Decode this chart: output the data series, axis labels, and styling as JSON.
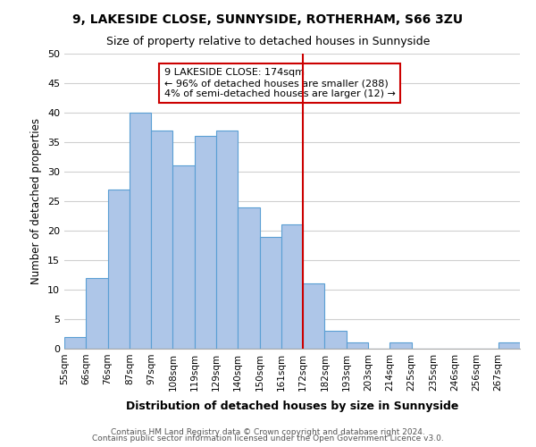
{
  "title": "9, LAKESIDE CLOSE, SUNNYSIDE, ROTHERHAM, S66 3ZU",
  "subtitle": "Size of property relative to detached houses in Sunnyside",
  "xlabel": "Distribution of detached houses by size in Sunnyside",
  "ylabel": "Number of detached properties",
  "bin_labels": [
    "55sqm",
    "66sqm",
    "76sqm",
    "87sqm",
    "97sqm",
    "108sqm",
    "119sqm",
    "129sqm",
    "140sqm",
    "150sqm",
    "161sqm",
    "172sqm",
    "182sqm",
    "193sqm",
    "203sqm",
    "214sqm",
    "225sqm",
    "235sqm",
    "246sqm",
    "256sqm",
    "267sqm"
  ],
  "bar_heights": [
    2,
    12,
    27,
    40,
    37,
    31,
    36,
    37,
    24,
    19,
    21,
    11,
    3,
    1,
    0,
    1,
    0,
    0,
    0,
    0,
    1
  ],
  "bar_color": "#aec6e8",
  "bar_edgecolor": "#5a9fd4",
  "vline_x": 11,
  "vline_color": "#cc0000",
  "annotation_title": "9 LAKESIDE CLOSE: 174sqm",
  "annotation_line1": "← 96% of detached houses are smaller (288)",
  "annotation_line2": "4% of semi-detached houses are larger (12) →",
  "annotation_box_color": "#ffffff",
  "annotation_box_edgecolor": "#cc0000",
  "ylim": [
    0,
    50
  ],
  "yticks": [
    0,
    5,
    10,
    15,
    20,
    25,
    30,
    35,
    40,
    45,
    50
  ],
  "footer1": "Contains HM Land Registry data © Crown copyright and database right 2024.",
  "footer2": "Contains public sector information licensed under the Open Government Licence v3.0.",
  "background_color": "#ffffff",
  "grid_color": "#d0d0d0"
}
